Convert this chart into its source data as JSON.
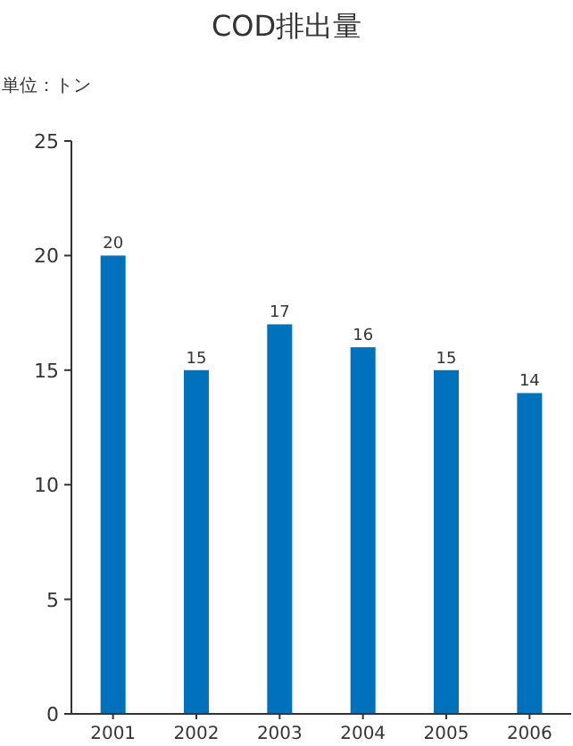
{
  "chart_data": {
    "type": "bar",
    "title": "COD排出量",
    "ylabel": "単位：トン",
    "categories": [
      "2001",
      "2002",
      "2003",
      "2004",
      "2005",
      "2006"
    ],
    "values": [
      20,
      15,
      17,
      16,
      15,
      14
    ],
    "color": "#0071bc",
    "ylim": [
      0,
      25
    ],
    "yticks": [
      0,
      5,
      10,
      15,
      20,
      25
    ],
    "data_labels": true,
    "grid": false,
    "legend": false
  }
}
